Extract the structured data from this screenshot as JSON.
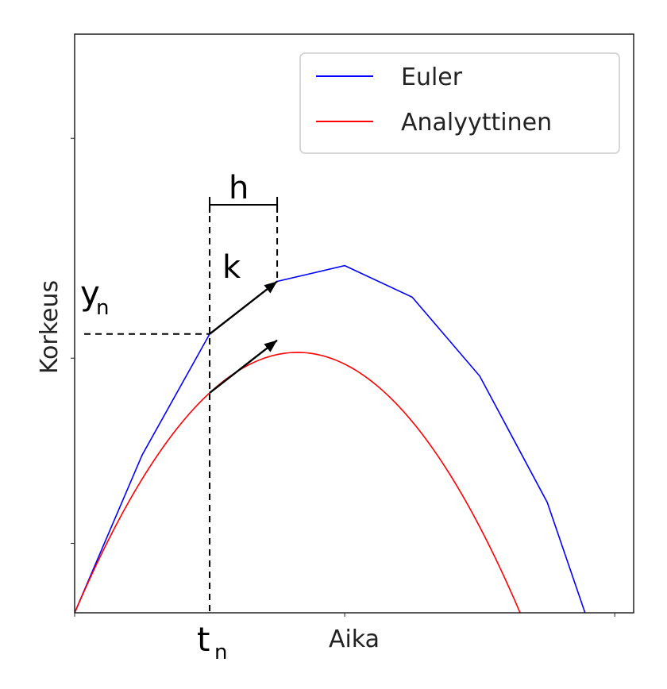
{
  "chart_data": {
    "type": "line",
    "title": "",
    "xlabel": "Aika",
    "ylabel": "Korkeus",
    "xlim": [
      0,
      8.28
    ],
    "ylim": [
      0,
      11
    ],
    "grid": false,
    "legend_position": "top-right",
    "series": [
      {
        "name": "Euler",
        "color": "#0000ff",
        "x": [
          0,
          1,
          2,
          3,
          4,
          5,
          6,
          7,
          7.56
        ],
        "y": [
          0,
          3.0,
          5.3,
          6.3,
          6.6,
          6.0,
          4.5,
          2.1,
          0
        ]
      },
      {
        "name": "Analyyttinen",
        "color": "#ff0000",
        "curve": {
          "form": "parabola",
          "vertex_x": 3.3,
          "vertex_y": 4.95,
          "a": 0.455
        }
      }
    ],
    "annotations": {
      "t_label": "t",
      "t_sub": "n",
      "y_label": "y",
      "y_sub": "n",
      "h_label": "h",
      "k_label": "k",
      "t_value": 2.0,
      "h_value": 1.0
    }
  }
}
